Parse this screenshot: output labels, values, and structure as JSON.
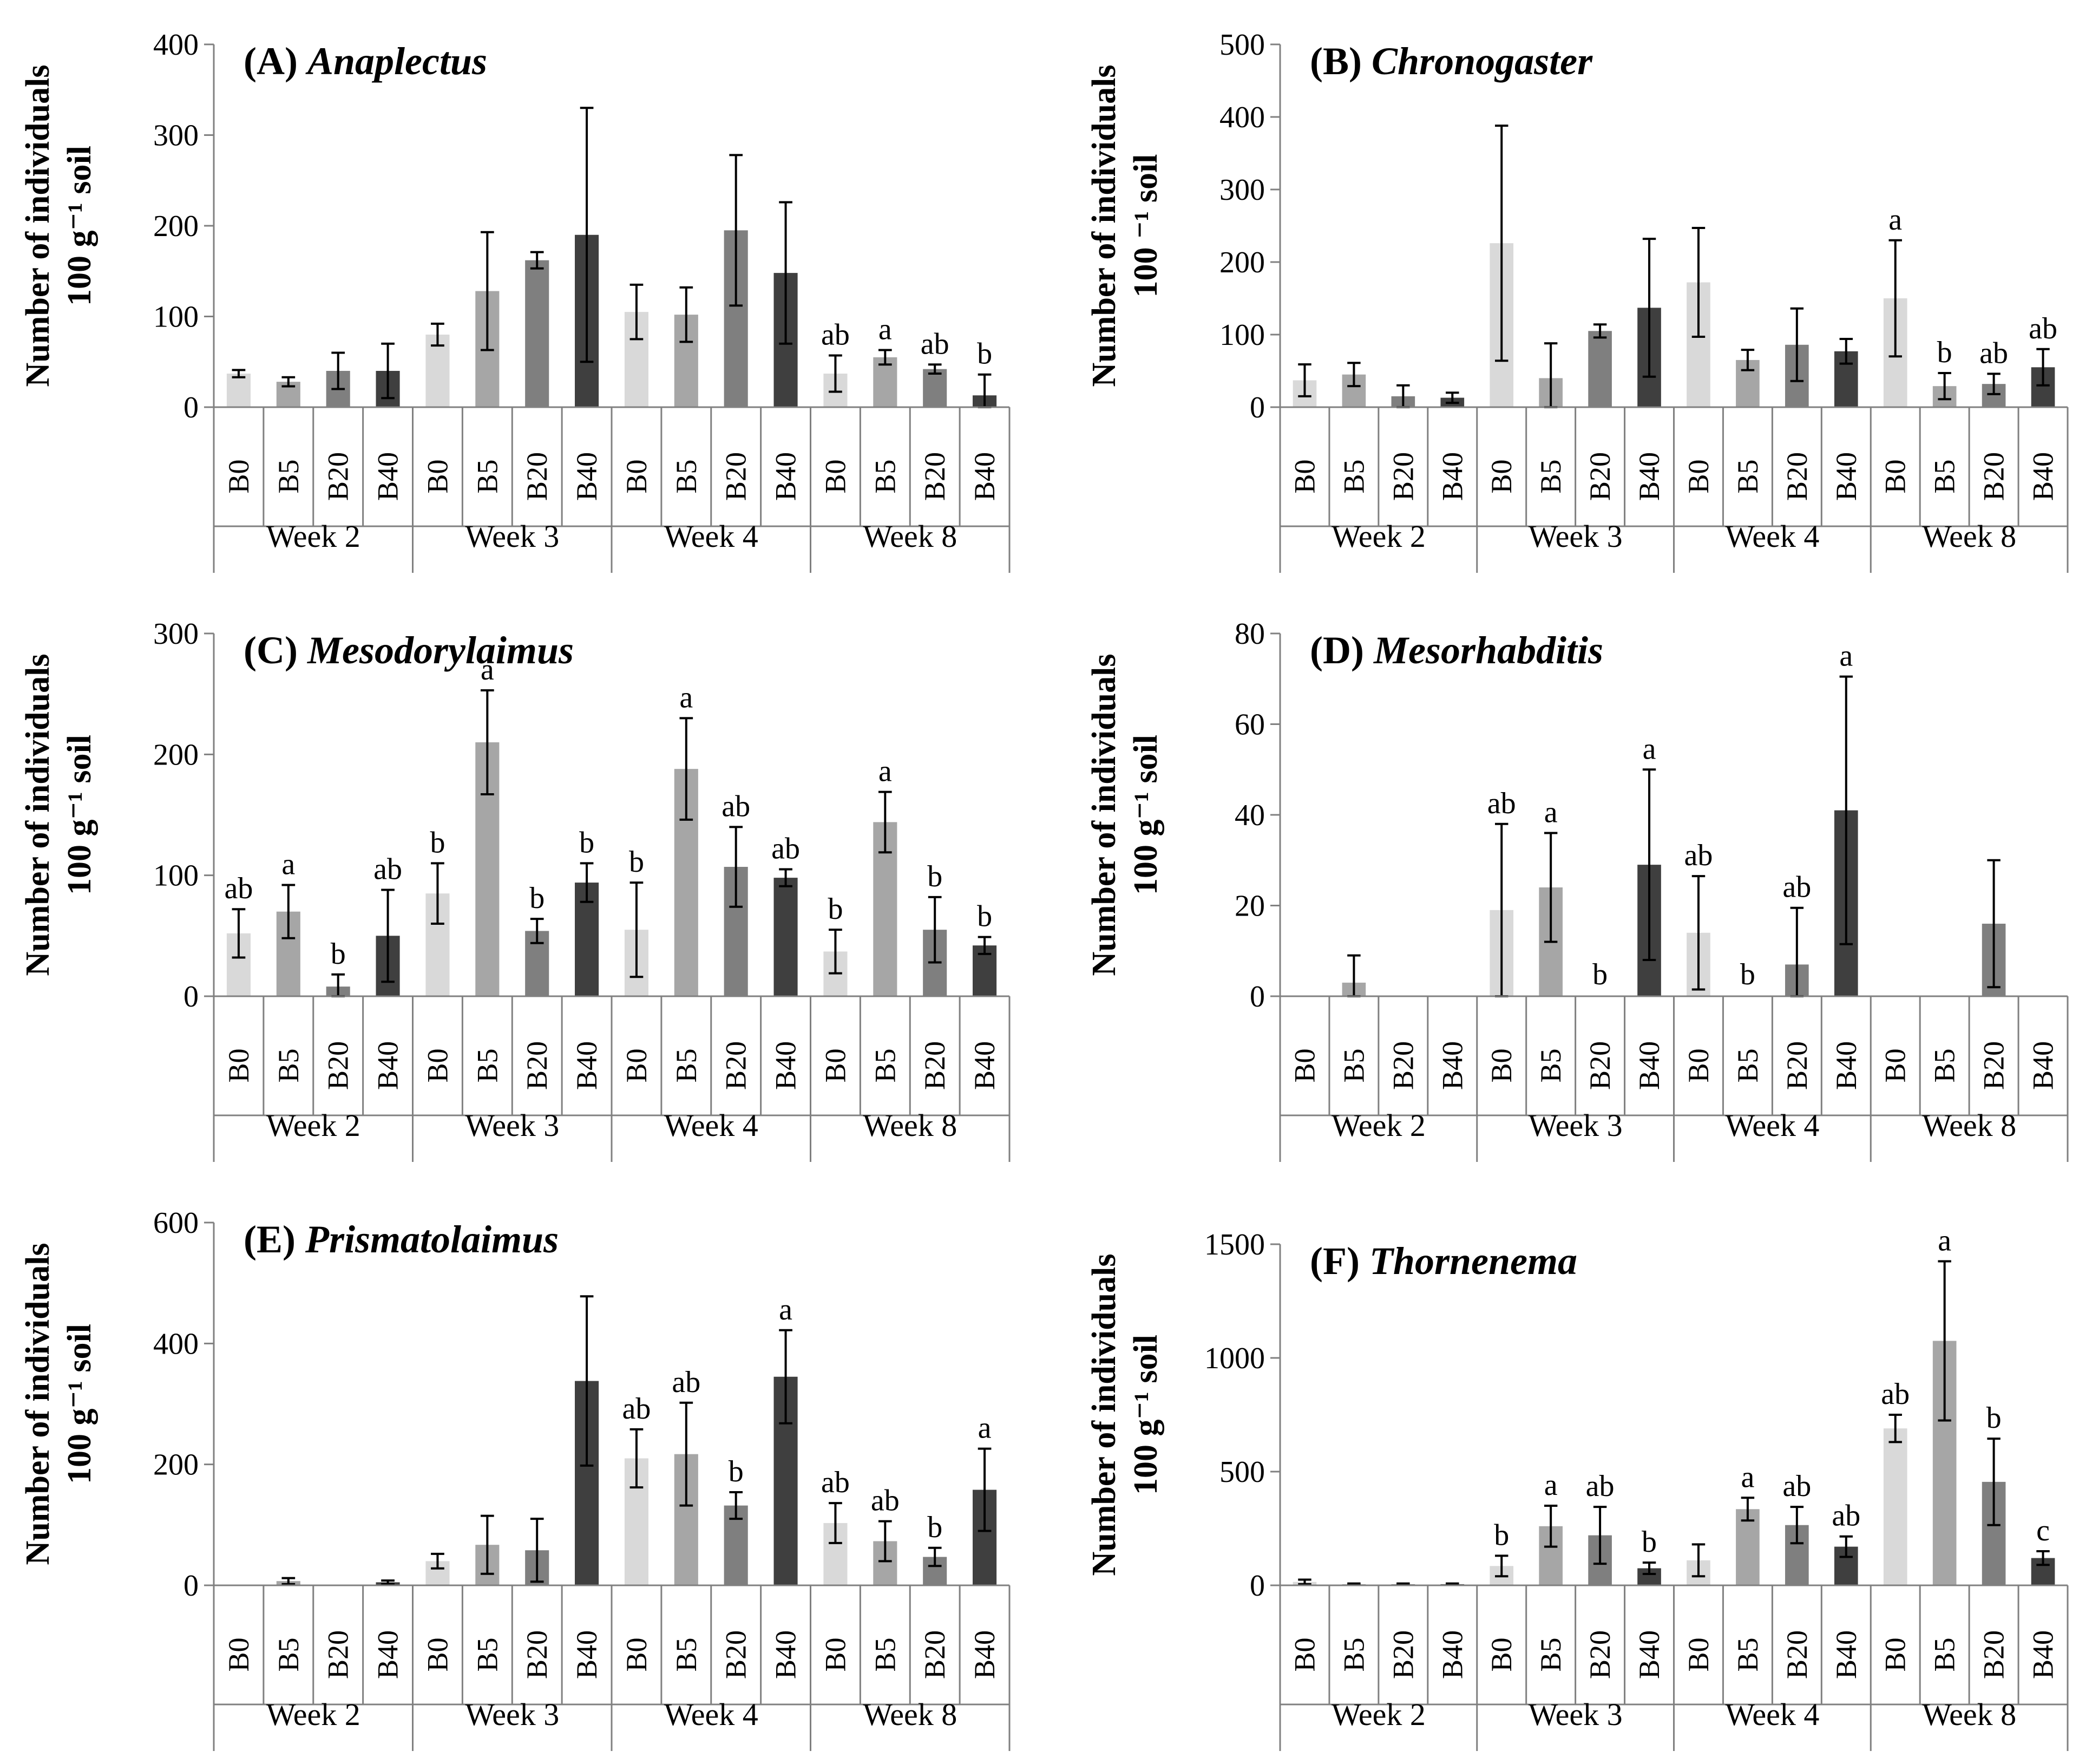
{
  "groups": [
    "Week 2",
    "Week 3",
    "Week 4",
    "Week 8"
  ],
  "treatments": [
    "B0",
    "B5",
    "B20",
    "B40"
  ],
  "colors": [
    "#d9d9d9",
    "#a6a6a6",
    "#7f7f7f",
    "#3f3f3f"
  ],
  "chart_data": [
    {
      "type": "bar",
      "title_label": "(A)",
      "title_genus": "Anaplectus",
      "ylabel_line1": "Number of individuals",
      "ylabel_line2": "100 g⁻¹ soil",
      "ylim": [
        0,
        400
      ],
      "yticks": [
        "0",
        "100",
        "200",
        "300",
        "400"
      ],
      "ytick_values": [
        0,
        100,
        200,
        300,
        400
      ],
      "values": [
        37,
        28,
        40,
        40,
        80,
        128,
        162,
        190,
        105,
        102,
        195,
        148,
        37,
        55,
        42,
        13
      ],
      "errors": [
        4,
        5,
        20,
        30,
        12,
        65,
        9,
        140,
        30,
        30,
        83,
        78,
        20,
        8,
        5,
        23
      ],
      "letters": [
        "",
        "",
        "",
        "",
        "",
        "",
        "",
        "",
        "",
        "",
        "",
        "",
        "ab",
        "a",
        "ab",
        "b"
      ]
    },
    {
      "type": "bar",
      "title_label": "(B)",
      "title_genus": "Chronogaster",
      "ylabel_line1": "Number of individuals",
      "ylabel_line2": "100 ⁻¹ soil",
      "ylim": [
        0,
        500
      ],
      "yticks": [
        "0",
        "100",
        "200",
        "300",
        "400",
        "500"
      ],
      "ytick_values": [
        0,
        100,
        200,
        300,
        400,
        500
      ],
      "values": [
        37,
        45,
        15,
        13,
        226,
        40,
        105,
        137,
        172,
        65,
        86,
        77,
        150,
        29,
        32,
        55
      ],
      "errors": [
        22,
        16,
        15,
        7,
        162,
        48,
        9,
        95,
        75,
        14,
        50,
        17,
        80,
        18,
        14,
        25
      ],
      "letters": [
        "",
        "",
        "",
        "",
        "",
        "",
        "",
        "",
        "",
        "",
        "",
        "",
        "a",
        "b",
        "ab",
        "ab"
      ]
    },
    {
      "type": "bar",
      "title_label": "(C)",
      "title_genus": "Mesodorylaimus",
      "ylabel_line1": "Number of individuals",
      "ylabel_line2": "100 g⁻¹ soil",
      "ylim": [
        0,
        300
      ],
      "yticks": [
        "0",
        "100",
        "200",
        "300"
      ],
      "ytick_values": [
        0,
        100,
        200,
        300
      ],
      "values": [
        52,
        70,
        8,
        50,
        85,
        210,
        54,
        94,
        55,
        188,
        107,
        98,
        37,
        144,
        55,
        42
      ],
      "errors": [
        20,
        22,
        10,
        38,
        25,
        43,
        10,
        16,
        39,
        42,
        33,
        7,
        18,
        25,
        27,
        7
      ],
      "letters": [
        "ab",
        "a",
        "b",
        "ab",
        "b",
        "a",
        "b",
        "b",
        "b",
        "a",
        "ab",
        "ab",
        "b",
        "a",
        "b",
        "b"
      ]
    },
    {
      "type": "bar",
      "title_label": "(D)",
      "title_genus": "Mesorhabditis",
      "ylabel_line1": "Number of individuals",
      "ylabel_line2": "100 g⁻¹ soil",
      "ylim": [
        0,
        80
      ],
      "yticks": [
        "0",
        "20",
        "40",
        "60",
        "80"
      ],
      "ytick_values": [
        0,
        20,
        40,
        60,
        80
      ],
      "values": [
        0,
        3,
        0,
        0,
        19,
        24,
        0,
        29,
        14,
        0,
        7,
        41,
        0,
        0,
        16,
        0
      ],
      "errors": [
        0,
        6,
        0,
        0,
        19,
        12,
        0,
        21,
        12.5,
        0,
        12.5,
        29.5,
        0,
        0,
        14,
        0
      ],
      "letters": [
        "",
        "",
        "",
        "",
        "ab",
        "a",
        "b",
        "a",
        "ab",
        "b",
        "ab",
        "a",
        "",
        "",
        "",
        ""
      ]
    },
    {
      "type": "bar",
      "title_label": "(E)",
      "title_genus": "Prismatolaimus",
      "ylabel_line1": "Number of individuals",
      "ylabel_line2": "100 g⁻¹ soil",
      "ylim": [
        0,
        600
      ],
      "yticks": [
        "0",
        "200",
        "400",
        "600"
      ],
      "ytick_values": [
        0,
        200,
        400,
        600
      ],
      "values": [
        0,
        7,
        0,
        5,
        40,
        67,
        58,
        338,
        210,
        217,
        132,
        345,
        103,
        73,
        47,
        158
      ],
      "errors": [
        0,
        5,
        0,
        3,
        12,
        48,
        52,
        140,
        48,
        85,
        22,
        77,
        33,
        33,
        15,
        68
      ],
      "letters": [
        "",
        "",
        "",
        "",
        "",
        "",
        "",
        "",
        "ab",
        "ab",
        "b",
        "a",
        "ab",
        "ab",
        "b",
        "a"
      ]
    },
    {
      "type": "bar",
      "title_label": "(F)",
      "title_genus": "Thornenema",
      "ylabel_line1": "Number of individuals",
      "ylabel_line2": "100 g⁻¹ soil",
      "ylim": [
        0,
        1500
      ],
      "yticks": [
        "0",
        "500",
        "1000",
        "1500"
      ],
      "ytick_values": [
        0,
        500,
        1000,
        1500
      ],
      "values": [
        15,
        5,
        5,
        5,
        85,
        260,
        220,
        75,
        110,
        335,
        265,
        170,
        690,
        1075,
        455,
        120
      ],
      "errors": [
        10,
        3,
        3,
        3,
        45,
        90,
        125,
        25,
        70,
        50,
        80,
        45,
        60,
        350,
        190,
        30
      ],
      "letters": [
        "",
        "",
        "",
        "",
        "b",
        "a",
        "ab",
        "b",
        "",
        "a",
        "ab",
        "ab",
        "ab",
        "a",
        "b",
        "c"
      ]
    }
  ]
}
